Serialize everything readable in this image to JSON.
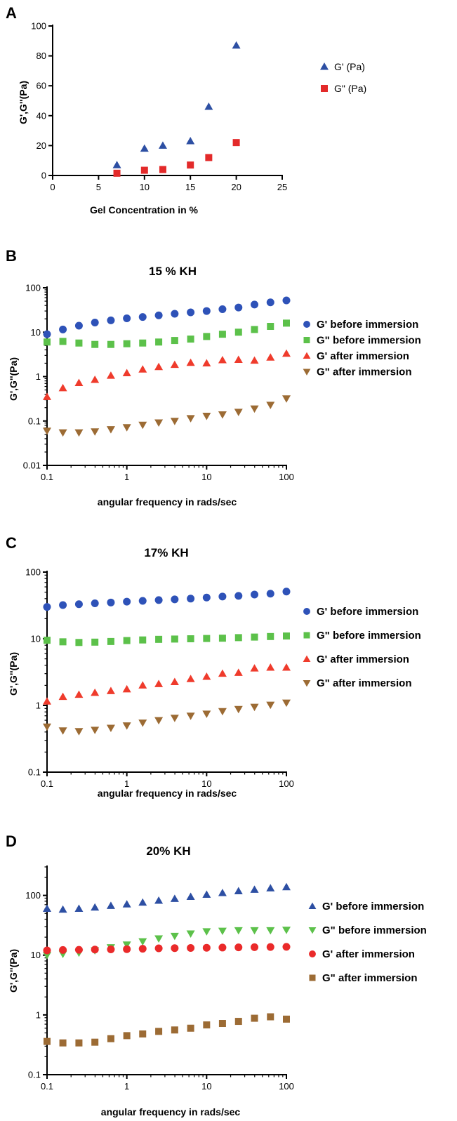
{
  "chart_data": [
    {
      "panel": "A",
      "type": "scatter",
      "title": "",
      "xlabel": "Gel Concentration in %",
      "ylabel": "G',G''(Pa)",
      "xlim": [
        0,
        25
      ],
      "ylim": [
        0,
        100
      ],
      "x_scale": "linear",
      "y_scale": "linear",
      "x_ticks": [
        "0",
        "5",
        "10",
        "15",
        "20",
        "25"
      ],
      "y_ticks": [
        "0",
        "20",
        "40",
        "60",
        "80",
        "100"
      ],
      "legend_position": "right",
      "series": [
        {
          "name": "G' (Pa)",
          "marker": "triangle-up",
          "color": "#2d4fa3",
          "x": [
            7,
            10,
            12,
            15,
            17,
            20
          ],
          "y": [
            7,
            18,
            20,
            23,
            46,
            87
          ]
        },
        {
          "name": "G\" (Pa)",
          "marker": "square",
          "color": "#e32a2a",
          "x": [
            7,
            10,
            12,
            15,
            17,
            20
          ],
          "y": [
            1.5,
            3.5,
            4,
            7,
            12,
            22
          ]
        }
      ]
    },
    {
      "panel": "B",
      "type": "scatter",
      "title": "15 % KH",
      "xlabel": "angular frequency in rads/sec",
      "ylabel": "G',G''(Pa)",
      "xlim": [
        0.1,
        100
      ],
      "ylim": [
        0.01,
        100
      ],
      "x_scale": "log",
      "y_scale": "log",
      "x_ticks": [
        "0.1",
        "1",
        "10",
        "100"
      ],
      "y_ticks": [
        "0.01",
        "0.1",
        "1",
        "10",
        "100"
      ],
      "legend_position": "right",
      "x": [
        0.1,
        0.158,
        0.251,
        0.398,
        0.631,
        1,
        1.58,
        2.51,
        3.98,
        6.31,
        10,
        15.8,
        25.1,
        39.8,
        63.1,
        100
      ],
      "series": [
        {
          "name": "G' before immersion",
          "marker": "circle",
          "color": "#2e52b8",
          "y": [
            9,
            11.5,
            14,
            16.5,
            18.5,
            20.5,
            22,
            24,
            26,
            28,
            30,
            33,
            36,
            42,
            47,
            52
          ]
        },
        {
          "name": "G\" before immersion",
          "marker": "square",
          "color": "#5cc14a",
          "y": [
            6,
            6.2,
            5.7,
            5.3,
            5.3,
            5.5,
            5.7,
            6,
            6.5,
            7,
            8,
            9,
            10,
            11.5,
            13.5,
            16
          ]
        },
        {
          "name": "G' after immersion",
          "marker": "triangle-up",
          "color": "#ef3b2c",
          "y": [
            0.35,
            0.55,
            0.72,
            0.85,
            1.05,
            1.2,
            1.45,
            1.65,
            1.85,
            2.05,
            2.0,
            2.35,
            2.4,
            2.3,
            2.7,
            3.3
          ]
        },
        {
          "name": "G\" after immersion",
          "marker": "triangle-down",
          "color": "#9c6b34",
          "y": [
            0.06,
            0.055,
            0.055,
            0.058,
            0.065,
            0.072,
            0.082,
            0.092,
            0.1,
            0.115,
            0.13,
            0.14,
            0.16,
            0.19,
            0.23,
            0.32
          ]
        }
      ]
    },
    {
      "panel": "C",
      "type": "scatter",
      "title": "17% KH",
      "xlabel": "angular frequency in rads/sec",
      "ylabel": "G',G''(Pa)",
      "xlim": [
        0.1,
        100
      ],
      "ylim": [
        0.1,
        100
      ],
      "x_scale": "log",
      "y_scale": "log",
      "x_ticks": [
        "0.1",
        "1",
        "10",
        "100"
      ],
      "y_ticks": [
        "0.1",
        "1",
        "10",
        "100"
      ],
      "legend_position": "right",
      "x": [
        0.1,
        0.158,
        0.251,
        0.398,
        0.631,
        1,
        1.58,
        2.51,
        3.98,
        6.31,
        10,
        15.8,
        25.1,
        39.8,
        63.1,
        100
      ],
      "series": [
        {
          "name": "G' before immersion",
          "marker": "circle",
          "color": "#2e52b8",
          "y": [
            30,
            32,
            33,
            34,
            35,
            36,
            37,
            38,
            39,
            40,
            41.5,
            43,
            44,
            46,
            47.5,
            51
          ]
        },
        {
          "name": "G\" before immersion",
          "marker": "square",
          "color": "#5cc14a",
          "y": [
            9.5,
            9,
            8.8,
            8.9,
            9.1,
            9.4,
            9.6,
            9.8,
            9.9,
            10,
            10.1,
            10.2,
            10.4,
            10.6,
            10.8,
            11
          ]
        },
        {
          "name": "G' after immersion",
          "marker": "triangle-up",
          "color": "#ef3b2c",
          "y": [
            1.15,
            1.35,
            1.45,
            1.55,
            1.65,
            1.75,
            2.0,
            2.1,
            2.25,
            2.5,
            2.7,
            3.0,
            3.1,
            3.6,
            3.7,
            3.7
          ]
        },
        {
          "name": "G\" after immersion",
          "marker": "triangle-down",
          "color": "#9c6b34",
          "y": [
            0.48,
            0.42,
            0.41,
            0.43,
            0.46,
            0.5,
            0.55,
            0.6,
            0.65,
            0.7,
            0.75,
            0.82,
            0.88,
            0.95,
            1.02,
            1.1
          ]
        }
      ]
    },
    {
      "panel": "D",
      "type": "scatter",
      "title": "20% KH",
      "xlabel": "angular frequency in rads/sec",
      "ylabel": "G',G''(Pa)",
      "xlim": [
        0.1,
        100
      ],
      "ylim": [
        0.1,
        300
      ],
      "x_scale": "log",
      "y_scale": "log",
      "x_ticks": [
        "0.1",
        "1",
        "10",
        "100"
      ],
      "y_ticks": [
        "0.1",
        "1",
        "10",
        "100"
      ],
      "legend_position": "right",
      "x": [
        0.1,
        0.158,
        0.251,
        0.398,
        0.631,
        1,
        1.58,
        2.51,
        3.98,
        6.31,
        10,
        15.8,
        25.1,
        39.8,
        63.1,
        100
      ],
      "series": [
        {
          "name": "G' before immersion",
          "marker": "triangle-up",
          "color": "#2d4fa3",
          "y": [
            60,
            58,
            60,
            63,
            67,
            71,
            76,
            82,
            88,
            95,
            103,
            110,
            118,
            125,
            132,
            138
          ]
        },
        {
          "name": "G\" before immersion",
          "marker": "triangle-down",
          "color": "#5cc14a",
          "y": [
            10,
            10.5,
            11,
            12,
            13.5,
            15,
            17,
            19,
            21,
            23,
            25,
            25.5,
            26,
            26,
            26,
            26.5
          ]
        },
        {
          "name": "G' after immersion",
          "marker": "circle",
          "color": "#ea2a2a",
          "y": [
            12,
            12.2,
            12.3,
            12.4,
            12.5,
            12.6,
            12.8,
            13,
            13.1,
            13.2,
            13.3,
            13.4,
            13.5,
            13.6,
            13.7,
            13.8
          ]
        },
        {
          "name": "G\" after immersion",
          "marker": "square",
          "color": "#9c6b34",
          "y": [
            0.36,
            0.34,
            0.34,
            0.35,
            0.4,
            0.45,
            0.48,
            0.53,
            0.56,
            0.6,
            0.68,
            0.72,
            0.78,
            0.88,
            0.93,
            0.85
          ]
        }
      ]
    }
  ]
}
